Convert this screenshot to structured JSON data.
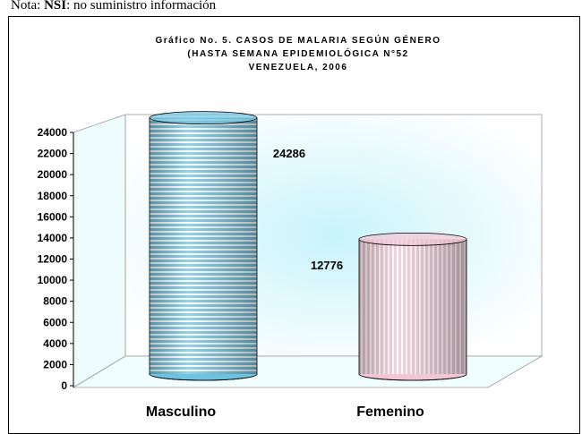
{
  "note": {
    "prefix": "Nota:",
    "bold": "NSI",
    "rest": ": no suministro información"
  },
  "chart_data": {
    "type": "cylinder",
    "title": [
      "Gráfico No. 5. CASOS DE MALARIA SEGÚN GÉNERO",
      "(HASTA SEMANA EPIDEMIOLÓGICA N°52",
      "VENEZUELA, 2006"
    ],
    "categories": [
      "Masculino",
      "Femenino"
    ],
    "values": [
      24286,
      12776
    ],
    "colors": [
      "#6fc3e0",
      "#f2c6d6"
    ],
    "ylim": [
      0,
      24000
    ],
    "yticks": [
      0,
      2000,
      4000,
      6000,
      8000,
      10000,
      12000,
      14000,
      16000,
      18000,
      20000,
      22000,
      24000
    ]
  }
}
